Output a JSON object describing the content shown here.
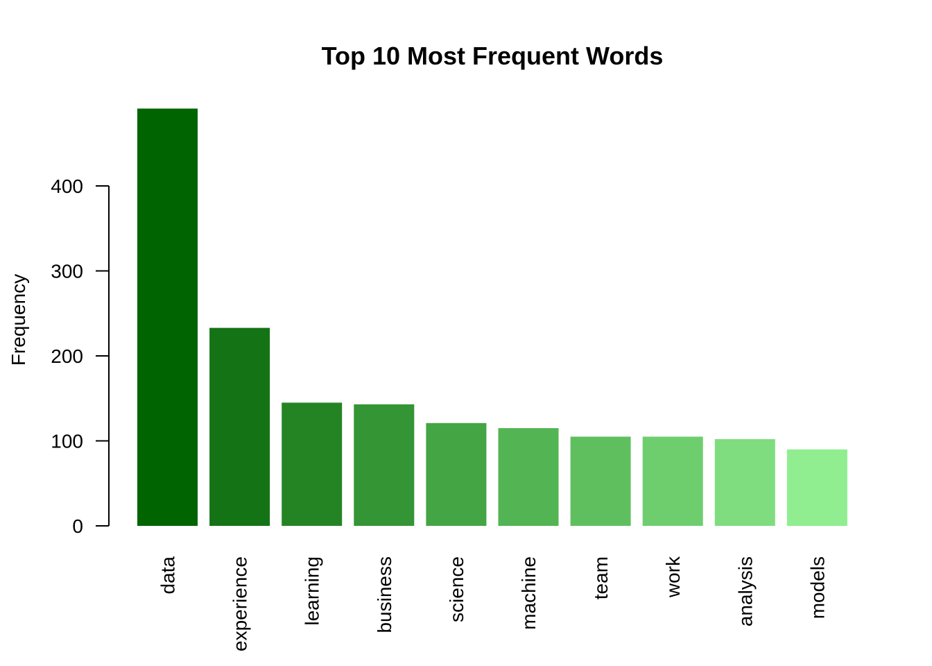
{
  "chart_data": {
    "type": "bar",
    "title": "Top 10 Most Frequent Words",
    "xlabel": "",
    "ylabel": "Frequency",
    "categories": [
      "data",
      "experience",
      "learning",
      "business",
      "science",
      "machine",
      "team",
      "work",
      "analysis",
      "models"
    ],
    "values": [
      491,
      233,
      145,
      143,
      121,
      115,
      105,
      105,
      102,
      90
    ],
    "colors": [
      "#006400",
      "#147314",
      "#248424",
      "#349534",
      "#44A544",
      "#53B453",
      "#5FBF5F",
      "#6ECE6E",
      "#7FDD7F",
      "#90EE90"
    ],
    "yticks": [
      0,
      100,
      200,
      300,
      400
    ],
    "ylim": [
      0,
      491
    ],
    "grid": false,
    "legend": "none"
  }
}
